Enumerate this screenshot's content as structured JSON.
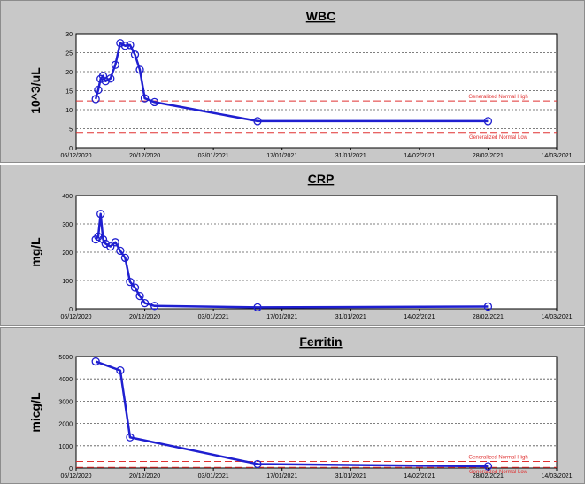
{
  "chart_data": [
    {
      "type": "line",
      "title": "WBC",
      "ylabel": "10^3/uL",
      "ylim": [
        0,
        30
      ],
      "yticks": [
        0,
        5,
        10,
        15,
        20,
        25,
        30
      ],
      "xticks": [
        "06/12/2020",
        "20/12/2020",
        "03/01/2021",
        "17/01/2021",
        "31/01/2021",
        "14/02/2021",
        "28/02/2021",
        "14/03/2021"
      ],
      "grid": true,
      "series_color": "#1f1fd0",
      "reference_color": "#e03030",
      "references": [
        {
          "label": "Generalized Normal High",
          "value": 12.3
        },
        {
          "label": "Generalized Normal Low",
          "value": 4.0
        }
      ],
      "series": [
        {
          "x": [
            "2020-12-10",
            "2020-12-10.5",
            "2020-12-11",
            "2020-12-11.5",
            "2020-12-12",
            "2020-12-13",
            "2020-12-14",
            "2020-12-15",
            "2020-12-16",
            "2020-12-17",
            "2020-12-18",
            "2020-12-19",
            "2020-12-20",
            "2020-12-22",
            "2021-01-12",
            "2021-02-28"
          ],
          "y": [
            12.8,
            15.2,
            18.1,
            18.9,
            17.5,
            18.2,
            21.8,
            27.5,
            26.8,
            27.0,
            24.5,
            20.5,
            13.0,
            12.0,
            7.0,
            7.0
          ]
        }
      ]
    },
    {
      "type": "line",
      "title": "CRP",
      "ylabel": "mg/L",
      "ylim": [
        0,
        400
      ],
      "yticks": [
        0,
        100,
        200,
        300,
        400
      ],
      "xticks": [
        "06/12/2020",
        "20/12/2020",
        "03/01/2021",
        "17/01/2021",
        "31/01/2021",
        "14/02/2021",
        "28/02/2021",
        "14/03/2021"
      ],
      "grid": true,
      "series_color": "#1f1fd0",
      "references": [],
      "series": [
        {
          "x": [
            "2020-12-10",
            "2020-12-10.5",
            "2020-12-11",
            "2020-12-11.5",
            "2020-12-12",
            "2020-12-13",
            "2020-12-14",
            "2020-12-15",
            "2020-12-16",
            "2020-12-17",
            "2020-12-18",
            "2020-12-19",
            "2020-12-20",
            "2020-12-22",
            "2021-01-12",
            "2021-02-28"
          ],
          "y": [
            245,
            255,
            335,
            245,
            230,
            220,
            235,
            205,
            180,
            95,
            75,
            45,
            20,
            10,
            5,
            8
          ]
        }
      ]
    },
    {
      "type": "line",
      "title": "Ferritin",
      "ylabel": "micg/L",
      "ylim": [
        0,
        5000
      ],
      "yticks": [
        0,
        1000,
        2000,
        3000,
        4000,
        5000
      ],
      "xticks": [
        "06/12/2020",
        "20/12/2020",
        "03/01/2021",
        "17/01/2021",
        "31/01/2021",
        "14/02/2021",
        "28/02/2021",
        "14/03/2021"
      ],
      "grid": true,
      "series_color": "#1f1fd0",
      "reference_color": "#e03030",
      "references": [
        {
          "label": "Generalized Normal High",
          "value": 300
        },
        {
          "label": "Generalized Normal Low",
          "value": 30
        }
      ],
      "series": [
        {
          "x": [
            "2020-12-10",
            "2020-12-15",
            "2020-12-17",
            "2021-01-12",
            "2021-02-28"
          ],
          "y": [
            4780,
            4380,
            1380,
            180,
            80
          ]
        }
      ]
    }
  ]
}
